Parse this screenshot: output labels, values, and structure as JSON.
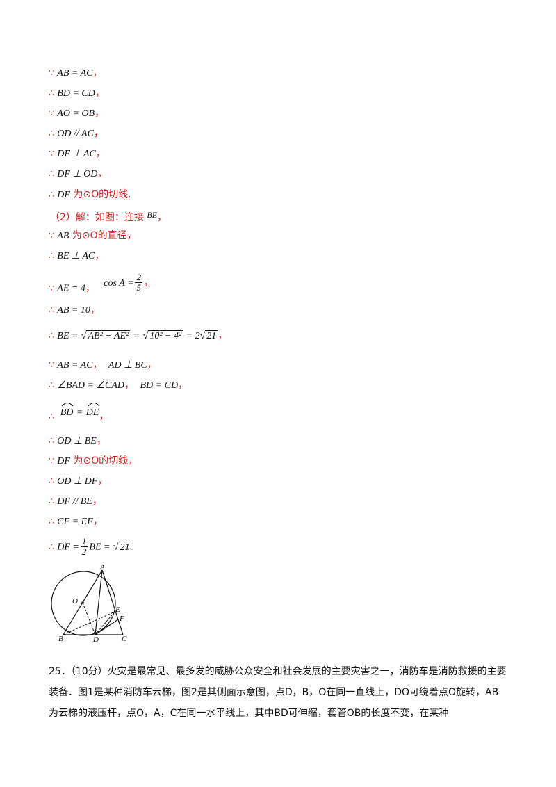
{
  "symbols": {
    "because": "∵",
    "therefore": "∴"
  },
  "lines": [
    {
      "sym": "∵",
      "expr": "AB = AC",
      "tail": "，"
    },
    {
      "sym": "∴",
      "expr": "BD = CD",
      "tail": "，"
    },
    {
      "sym": "∵",
      "expr": "AO = OB",
      "tail": "，"
    },
    {
      "sym": "∴",
      "expr": "OD // AC",
      "tail": "，"
    },
    {
      "sym": "∵",
      "expr": "DF ⊥ AC",
      "tail": "，"
    },
    {
      "sym": "∴",
      "expr": "DF ⊥ OD",
      "tail": "，"
    },
    {
      "sym": "∴",
      "expr": "DF",
      "red_text": "为⊙O的切线.",
      "tail": ""
    },
    {
      "sym": "",
      "red_text": "（2）解：如图：连接",
      "expr": "BE",
      "tail": "，"
    },
    {
      "sym": "∵",
      "expr": "AB",
      "red_text": "为⊙O的直径，",
      "tail": ""
    },
    {
      "sym": "∴",
      "expr": "BE ⊥ AC",
      "tail": "，"
    },
    {
      "sym": "∵",
      "expr": "AE = 4",
      "tail": "，",
      "expr2": "cos A =",
      "frac_num": "2",
      "frac_den": "5",
      "tail2": "，"
    },
    {
      "sym": "∴",
      "expr": "AB = 10",
      "tail": "，"
    },
    {
      "sym": "∴",
      "expr": "BE =",
      "sqrt1": "AB² − AE²",
      "mid": "=",
      "sqrt2": "10² − 4²",
      "mid2": "= 2",
      "sqrt3": "21",
      "tail": "，"
    },
    {
      "sym": "∵",
      "expr": "AB = AC",
      "tail": "，",
      "expr2": "AD ⊥ BC",
      "tail2": "，"
    },
    {
      "sym": "∴",
      "expr": "∠BAD = ∠CAD",
      "tail": "，",
      "expr2": "BD = CD",
      "tail2": "，"
    },
    {
      "sym": "∴",
      "expr": "BD⌒ = DE⌒",
      "arc1": "BD",
      "arc_eq": "=",
      "arc2": "DE",
      "tail": "，"
    },
    {
      "sym": "∴",
      "expr": "OD ⊥ BE",
      "tail": "，"
    },
    {
      "sym": "∵",
      "expr": "DF",
      "red_text": "为⊙O的切线，",
      "tail": ""
    },
    {
      "sym": "∴",
      "expr": "OD ⊥ DF",
      "tail": "，"
    },
    {
      "sym": "∴",
      "expr": "DF // BE",
      "tail": "，"
    },
    {
      "sym": "∴",
      "expr": "CF = EF",
      "tail": "，"
    },
    {
      "sym": "∴",
      "expr": "DF =",
      "frac_num": "1",
      "frac_den": "2",
      "expr2": "BE =",
      "sqrt1": "21",
      "tail": "."
    }
  ],
  "figure": {
    "labels": {
      "A": "A",
      "O": "O",
      "E": "E",
      "F": "F",
      "B": "B",
      "D": "D",
      "C": "C"
    }
  },
  "problem": {
    "text": "25．（10分）火灾是最常见、最多发的威胁公众安全和社会发展的主要灾害之一，消防车是消防救援的主要装备．图1是某种消防车云梯，图2是其侧面示意图，点D，B，O在同一直线上，DO可绕着点O旋转，AB为云梯的液压杆，点O，A，C在同一水平线上，其中BD可伸缩，套管OB的长度不变，在某种"
  }
}
